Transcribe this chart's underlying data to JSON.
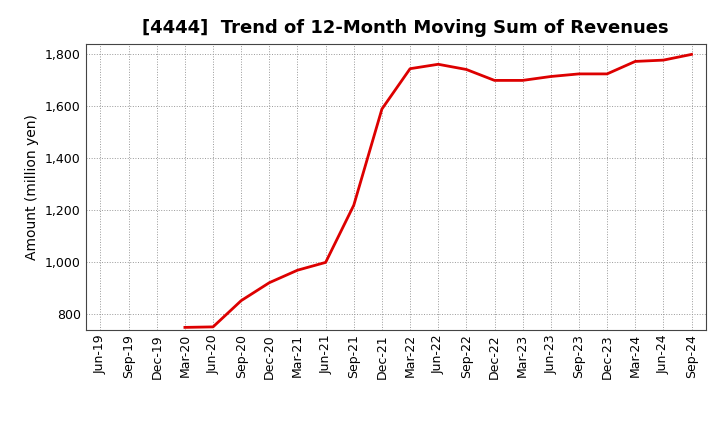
{
  "title": "[4444]  Trend of 12-Month Moving Sum of Revenues",
  "ylabel": "Amount (million yen)",
  "line_color": "#dd0000",
  "background_color": "#ffffff",
  "plot_bg_color": "#ffffff",
  "grid_color": "#999999",
  "ylim": [
    740,
    1840
  ],
  "yticks": [
    800,
    1000,
    1200,
    1400,
    1600,
    1800
  ],
  "x_labels": [
    "Jun-19",
    "Sep-19",
    "Dec-19",
    "Mar-20",
    "Jun-20",
    "Sep-20",
    "Dec-20",
    "Mar-21",
    "Jun-21",
    "Sep-21",
    "Dec-21",
    "Mar-22",
    "Jun-22",
    "Sep-22",
    "Dec-22",
    "Mar-23",
    "Jun-23",
    "Sep-23",
    "Dec-23",
    "Mar-24",
    "Jun-24",
    "Sep-24"
  ],
  "data_points": [
    [
      "Jun-19",
      null
    ],
    [
      "Sep-19",
      null
    ],
    [
      "Dec-19",
      null
    ],
    [
      "Mar-20",
      750
    ],
    [
      "Jun-20",
      752
    ],
    [
      "Sep-20",
      853
    ],
    [
      "Dec-20",
      922
    ],
    [
      "Mar-21",
      970
    ],
    [
      "Jun-21",
      1000
    ],
    [
      "Sep-21",
      1220
    ],
    [
      "Dec-21",
      1590
    ],
    [
      "Mar-22",
      1745
    ],
    [
      "Jun-22",
      1762
    ],
    [
      "Sep-22",
      1742
    ],
    [
      "Dec-22",
      1700
    ],
    [
      "Mar-23",
      1700
    ],
    [
      "Jun-23",
      1715
    ],
    [
      "Sep-23",
      1725
    ],
    [
      "Dec-23",
      1725
    ],
    [
      "Mar-24",
      1773
    ],
    [
      "Jun-24",
      1778
    ],
    [
      "Sep-24",
      1800
    ]
  ],
  "title_fontsize": 13,
  "ylabel_fontsize": 10,
  "tick_fontsize": 9
}
